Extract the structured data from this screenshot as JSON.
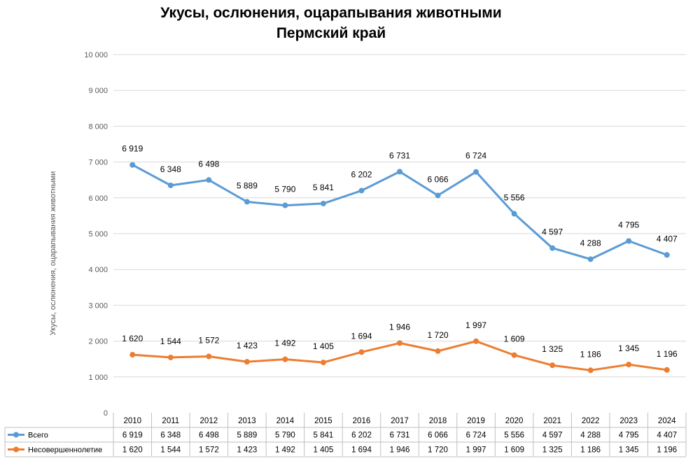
{
  "chart_data": {
    "type": "line",
    "title": "Укусы, ослюнения, оцарапывания животными",
    "subtitle": "Пермский край",
    "ylabel": "Укусы, ослюнения, оцарапывания животными",
    "xlabel": "",
    "ylim": [
      0,
      10000
    ],
    "y_ticks": [
      0,
      1000,
      2000,
      3000,
      4000,
      5000,
      6000,
      7000,
      8000,
      9000,
      10000
    ],
    "y_tick_labels": [
      "0",
      "1 000",
      "2 000",
      "3 000",
      "4 000",
      "5 000",
      "6 000",
      "7 000",
      "8 000",
      "9 000",
      "10 000"
    ],
    "grid": true,
    "legend": "data table below chart",
    "categories": [
      "2010",
      "2011",
      "2012",
      "2013",
      "2014",
      "2015",
      "2016",
      "2017",
      "2018",
      "2019",
      "2020",
      "2021",
      "2022",
      "2023",
      "2024"
    ],
    "series": [
      {
        "name": "Всего",
        "color": "#5b9bd5",
        "values": [
          6919,
          6348,
          6498,
          5889,
          5790,
          5841,
          6202,
          6731,
          6066,
          6724,
          5556,
          4597,
          4288,
          4795,
          4407
        ],
        "labels": [
          "6 919",
          "6 348",
          "6 498",
          "5 889",
          "5 790",
          "5 841",
          "6 202",
          "6 731",
          "6 066",
          "6 724",
          "5 556",
          "4 597",
          "4 288",
          "4 795",
          "4 407"
        ]
      },
      {
        "name": "Несовершеннолетие",
        "color": "#ed7d31",
        "values": [
          1620,
          1544,
          1572,
          1423,
          1492,
          1405,
          1694,
          1946,
          1720,
          1997,
          1609,
          1325,
          1186,
          1345,
          1196
        ],
        "labels": [
          "1 620",
          "1 544",
          "1 572",
          "1 423",
          "1 492",
          "1 405",
          "1 694",
          "1 946",
          "1 720",
          "1 997",
          "1 609",
          "1 325",
          "1 186",
          "1 345",
          "1 196"
        ]
      }
    ]
  }
}
